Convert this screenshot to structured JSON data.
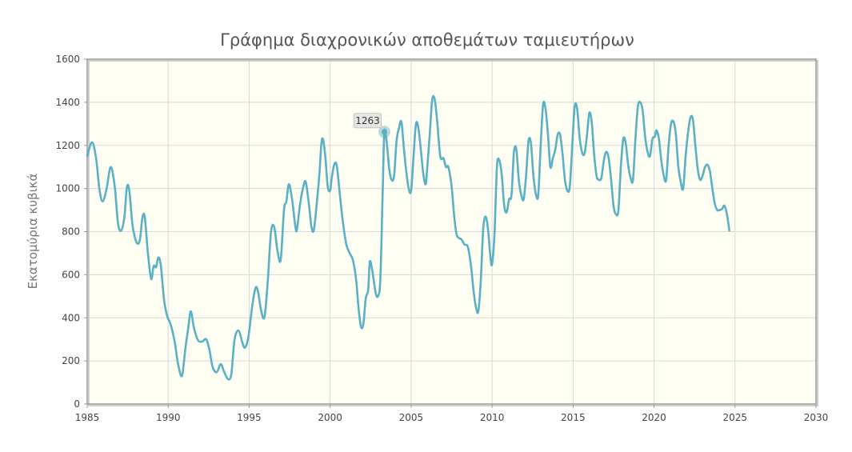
{
  "chart_data": {
    "type": "line",
    "title": "Γράφημα διαχρονικών αποθεμάτων ταμιευτήρων",
    "xlabel": "",
    "ylabel": "Εκατομύρια κυβικά",
    "xlim": [
      1985,
      2030
    ],
    "ylim": [
      0,
      1600
    ],
    "x_ticks": [
      "1985",
      "1990",
      "1995",
      "2000",
      "2005",
      "2010",
      "2015",
      "2020",
      "2025",
      "2030"
    ],
    "y_ticks": [
      "0",
      "200",
      "400",
      "600",
      "800",
      "1000",
      "1200",
      "1400",
      "1600"
    ],
    "grid": true,
    "plot_background": "#fffef3",
    "line_color": "#5ab0c4",
    "tooltip": {
      "x": 2003.35,
      "y": 1263,
      "label": "1263"
    },
    "series": [
      {
        "points": [
          [
            1985.0,
            1150
          ],
          [
            1985.3,
            1215
          ],
          [
            1985.55,
            1140
          ],
          [
            1985.75,
            1000
          ],
          [
            1985.95,
            940
          ],
          [
            1986.2,
            1000
          ],
          [
            1986.45,
            1100
          ],
          [
            1986.7,
            1010
          ],
          [
            1986.9,
            840
          ],
          [
            1987.1,
            805
          ],
          [
            1987.3,
            870
          ],
          [
            1987.45,
            1005
          ],
          [
            1987.6,
            990
          ],
          [
            1987.8,
            830
          ],
          [
            1988.05,
            750
          ],
          [
            1988.25,
            760
          ],
          [
            1988.4,
            860
          ],
          [
            1988.55,
            870
          ],
          [
            1988.75,
            700
          ],
          [
            1988.95,
            580
          ],
          [
            1989.1,
            640
          ],
          [
            1989.25,
            635
          ],
          [
            1989.4,
            680
          ],
          [
            1989.55,
            640
          ],
          [
            1989.75,
            480
          ],
          [
            1989.95,
            405
          ],
          [
            1990.15,
            370
          ],
          [
            1990.4,
            290
          ],
          [
            1990.6,
            190
          ],
          [
            1990.85,
            130
          ],
          [
            1991.05,
            250
          ],
          [
            1991.25,
            360
          ],
          [
            1991.4,
            430
          ],
          [
            1991.6,
            350
          ],
          [
            1991.85,
            295
          ],
          [
            1992.1,
            290
          ],
          [
            1992.35,
            300
          ],
          [
            1992.55,
            250
          ],
          [
            1992.75,
            170
          ],
          [
            1993.0,
            148
          ],
          [
            1993.25,
            185
          ],
          [
            1993.45,
            150
          ],
          [
            1993.7,
            115
          ],
          [
            1993.9,
            140
          ],
          [
            1994.1,
            300
          ],
          [
            1994.35,
            340
          ],
          [
            1994.6,
            280
          ],
          [
            1994.75,
            262
          ],
          [
            1994.95,
            310
          ],
          [
            1995.2,
            460
          ],
          [
            1995.4,
            540
          ],
          [
            1995.55,
            520
          ],
          [
            1995.75,
            430
          ],
          [
            1995.95,
            405
          ],
          [
            1996.15,
            570
          ],
          [
            1996.35,
            800
          ],
          [
            1996.55,
            820
          ],
          [
            1996.75,
            710
          ],
          [
            1996.95,
            670
          ],
          [
            1997.15,
            900
          ],
          [
            1997.3,
            940
          ],
          [
            1997.45,
            1020
          ],
          [
            1997.65,
            950
          ],
          [
            1997.85,
            825
          ],
          [
            1997.95,
            810
          ],
          [
            1998.15,
            930
          ],
          [
            1998.35,
            1010
          ],
          [
            1998.5,
            1030
          ],
          [
            1998.7,
            920
          ],
          [
            1998.85,
            820
          ],
          [
            1999.0,
            810
          ],
          [
            1999.2,
            950
          ],
          [
            1999.35,
            1080
          ],
          [
            1999.45,
            1200
          ],
          [
            1999.55,
            1230
          ],
          [
            1999.7,
            1150
          ],
          [
            1999.85,
            1010
          ],
          [
            2000.0,
            990
          ],
          [
            2000.1,
            1050
          ],
          [
            2000.25,
            1110
          ],
          [
            2000.4,
            1110
          ],
          [
            2000.55,
            1010
          ],
          [
            2000.7,
            900
          ],
          [
            2000.85,
            810
          ],
          [
            2001.0,
            740
          ],
          [
            2001.2,
            700
          ],
          [
            2001.4,
            670
          ],
          [
            2001.6,
            580
          ],
          [
            2001.75,
            450
          ],
          [
            2001.9,
            360
          ],
          [
            2002.05,
            370
          ],
          [
            2002.2,
            490
          ],
          [
            2002.35,
            530
          ],
          [
            2002.45,
            660
          ],
          [
            2002.6,
            620
          ],
          [
            2002.8,
            520
          ],
          [
            2002.95,
            500
          ],
          [
            2003.1,
            580
          ],
          [
            2003.25,
            1000
          ],
          [
            2003.35,
            1263
          ],
          [
            2003.5,
            1210
          ],
          [
            2003.65,
            1090
          ],
          [
            2003.8,
            1040
          ],
          [
            2003.95,
            1060
          ],
          [
            2004.1,
            1220
          ],
          [
            2004.25,
            1280
          ],
          [
            2004.4,
            1310
          ],
          [
            2004.55,
            1190
          ],
          [
            2004.7,
            1080
          ],
          [
            2004.85,
            1000
          ],
          [
            2005.0,
            990
          ],
          [
            2005.15,
            1150
          ],
          [
            2005.3,
            1300
          ],
          [
            2005.45,
            1280
          ],
          [
            2005.6,
            1180
          ],
          [
            2005.75,
            1070
          ],
          [
            2005.9,
            1020
          ],
          [
            2006.0,
            1100
          ],
          [
            2006.15,
            1250
          ],
          [
            2006.3,
            1410
          ],
          [
            2006.45,
            1415
          ],
          [
            2006.6,
            1320
          ],
          [
            2006.8,
            1150
          ],
          [
            2007.0,
            1140
          ],
          [
            2007.15,
            1100
          ],
          [
            2007.3,
            1100
          ],
          [
            2007.5,
            1010
          ],
          [
            2007.65,
            880
          ],
          [
            2007.8,
            790
          ],
          [
            2007.95,
            770
          ],
          [
            2008.1,
            765
          ],
          [
            2008.3,
            740
          ],
          [
            2008.5,
            730
          ],
          [
            2008.7,
            640
          ],
          [
            2008.85,
            530
          ],
          [
            2009.0,
            450
          ],
          [
            2009.15,
            430
          ],
          [
            2009.3,
            570
          ],
          [
            2009.45,
            810
          ],
          [
            2009.6,
            870
          ],
          [
            2009.75,
            810
          ],
          [
            2009.9,
            680
          ],
          [
            2010.0,
            650
          ],
          [
            2010.15,
            790
          ],
          [
            2010.3,
            1100
          ],
          [
            2010.45,
            1130
          ],
          [
            2010.6,
            1060
          ],
          [
            2010.75,
            920
          ],
          [
            2010.9,
            890
          ],
          [
            2011.05,
            950
          ],
          [
            2011.2,
            970
          ],
          [
            2011.35,
            1170
          ],
          [
            2011.5,
            1180
          ],
          [
            2011.65,
            1040
          ],
          [
            2011.8,
            970
          ],
          [
            2011.95,
            950
          ],
          [
            2012.1,
            1060
          ],
          [
            2012.25,
            1220
          ],
          [
            2012.4,
            1210
          ],
          [
            2012.55,
            1060
          ],
          [
            2012.7,
            975
          ],
          [
            2012.85,
            970
          ],
          [
            2013.0,
            1200
          ],
          [
            2013.15,
            1390
          ],
          [
            2013.3,
            1370
          ],
          [
            2013.45,
            1250
          ],
          [
            2013.6,
            1100
          ],
          [
            2013.75,
            1140
          ],
          [
            2013.9,
            1180
          ],
          [
            2014.05,
            1250
          ],
          [
            2014.2,
            1250
          ],
          [
            2014.35,
            1160
          ],
          [
            2014.5,
            1040
          ],
          [
            2014.65,
            990
          ],
          [
            2014.8,
            1010
          ],
          [
            2014.95,
            1200
          ],
          [
            2015.1,
            1380
          ],
          [
            2015.25,
            1370
          ],
          [
            2015.4,
            1240
          ],
          [
            2015.55,
            1170
          ],
          [
            2015.7,
            1160
          ],
          [
            2015.85,
            1240
          ],
          [
            2016.0,
            1350
          ],
          [
            2016.15,
            1310
          ],
          [
            2016.3,
            1160
          ],
          [
            2016.45,
            1060
          ],
          [
            2016.6,
            1040
          ],
          [
            2016.75,
            1050
          ],
          [
            2016.9,
            1130
          ],
          [
            2017.05,
            1170
          ],
          [
            2017.2,
            1140
          ],
          [
            2017.35,
            1040
          ],
          [
            2017.5,
            920
          ],
          [
            2017.65,
            880
          ],
          [
            2017.8,
            900
          ],
          [
            2017.95,
            1100
          ],
          [
            2018.1,
            1230
          ],
          [
            2018.25,
            1210
          ],
          [
            2018.4,
            1110
          ],
          [
            2018.55,
            1050
          ],
          [
            2018.7,
            1040
          ],
          [
            2018.85,
            1230
          ],
          [
            2019.0,
            1380
          ],
          [
            2019.15,
            1400
          ],
          [
            2019.3,
            1360
          ],
          [
            2019.45,
            1240
          ],
          [
            2019.6,
            1170
          ],
          [
            2019.75,
            1150
          ],
          [
            2019.9,
            1230
          ],
          [
            2020.05,
            1240
          ],
          [
            2020.15,
            1270
          ],
          [
            2020.3,
            1230
          ],
          [
            2020.45,
            1130
          ],
          [
            2020.6,
            1060
          ],
          [
            2020.75,
            1040
          ],
          [
            2020.9,
            1200
          ],
          [
            2021.05,
            1300
          ],
          [
            2021.2,
            1310
          ],
          [
            2021.35,
            1250
          ],
          [
            2021.5,
            1100
          ],
          [
            2021.65,
            1030
          ],
          [
            2021.8,
            1000
          ],
          [
            2021.95,
            1150
          ],
          [
            2022.1,
            1260
          ],
          [
            2022.25,
            1330
          ],
          [
            2022.4,
            1320
          ],
          [
            2022.55,
            1200
          ],
          [
            2022.7,
            1090
          ],
          [
            2022.85,
            1040
          ],
          [
            2023.0,
            1060
          ],
          [
            2023.15,
            1100
          ],
          [
            2023.3,
            1110
          ],
          [
            2023.45,
            1080
          ],
          [
            2023.6,
            1000
          ],
          [
            2023.75,
            930
          ],
          [
            2023.9,
            900
          ],
          [
            2024.05,
            900
          ],
          [
            2024.2,
            905
          ],
          [
            2024.35,
            920
          ],
          [
            2024.5,
            880
          ],
          [
            2024.65,
            805
          ]
        ]
      }
    ]
  }
}
